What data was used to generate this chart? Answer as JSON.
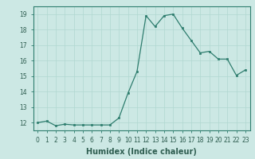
{
  "x": [
    0,
    1,
    2,
    3,
    4,
    5,
    6,
    7,
    8,
    9,
    10,
    11,
    12,
    13,
    14,
    15,
    16,
    17,
    18,
    19,
    20,
    21,
    22,
    23
  ],
  "y": [
    12.0,
    12.1,
    11.8,
    11.9,
    11.85,
    11.85,
    11.85,
    11.85,
    11.85,
    12.3,
    13.9,
    15.3,
    18.9,
    18.2,
    18.9,
    19.0,
    18.1,
    17.3,
    16.5,
    16.6,
    16.1,
    16.1,
    15.05,
    15.4
  ],
  "line_color": "#2e7d6e",
  "marker": "s",
  "marker_size": 2.0,
  "xlabel": "Humidex (Indice chaleur)",
  "xlim": [
    -0.5,
    23.5
  ],
  "ylim": [
    11.5,
    19.5
  ],
  "yticks": [
    12,
    13,
    14,
    15,
    16,
    17,
    18,
    19
  ],
  "xticks": [
    0,
    1,
    2,
    3,
    4,
    5,
    6,
    7,
    8,
    9,
    10,
    11,
    12,
    13,
    14,
    15,
    16,
    17,
    18,
    19,
    20,
    21,
    22,
    23
  ],
  "xtick_labels": [
    "0",
    "1",
    "2",
    "3",
    "4",
    "5",
    "6",
    "7",
    "8",
    "9",
    "10",
    "11",
    "12",
    "13",
    "14",
    "15",
    "16",
    "17",
    "18",
    "19",
    "20",
    "21",
    "22",
    "23"
  ],
  "background_color": "#cce8e4",
  "grid_color": "#b0d8d0",
  "figure_bg": "#cce8e4",
  "tick_color": "#2e5d50",
  "label_fontsize": 6.5,
  "tick_fontsize": 5.5,
  "xlabel_fontsize": 7.0
}
